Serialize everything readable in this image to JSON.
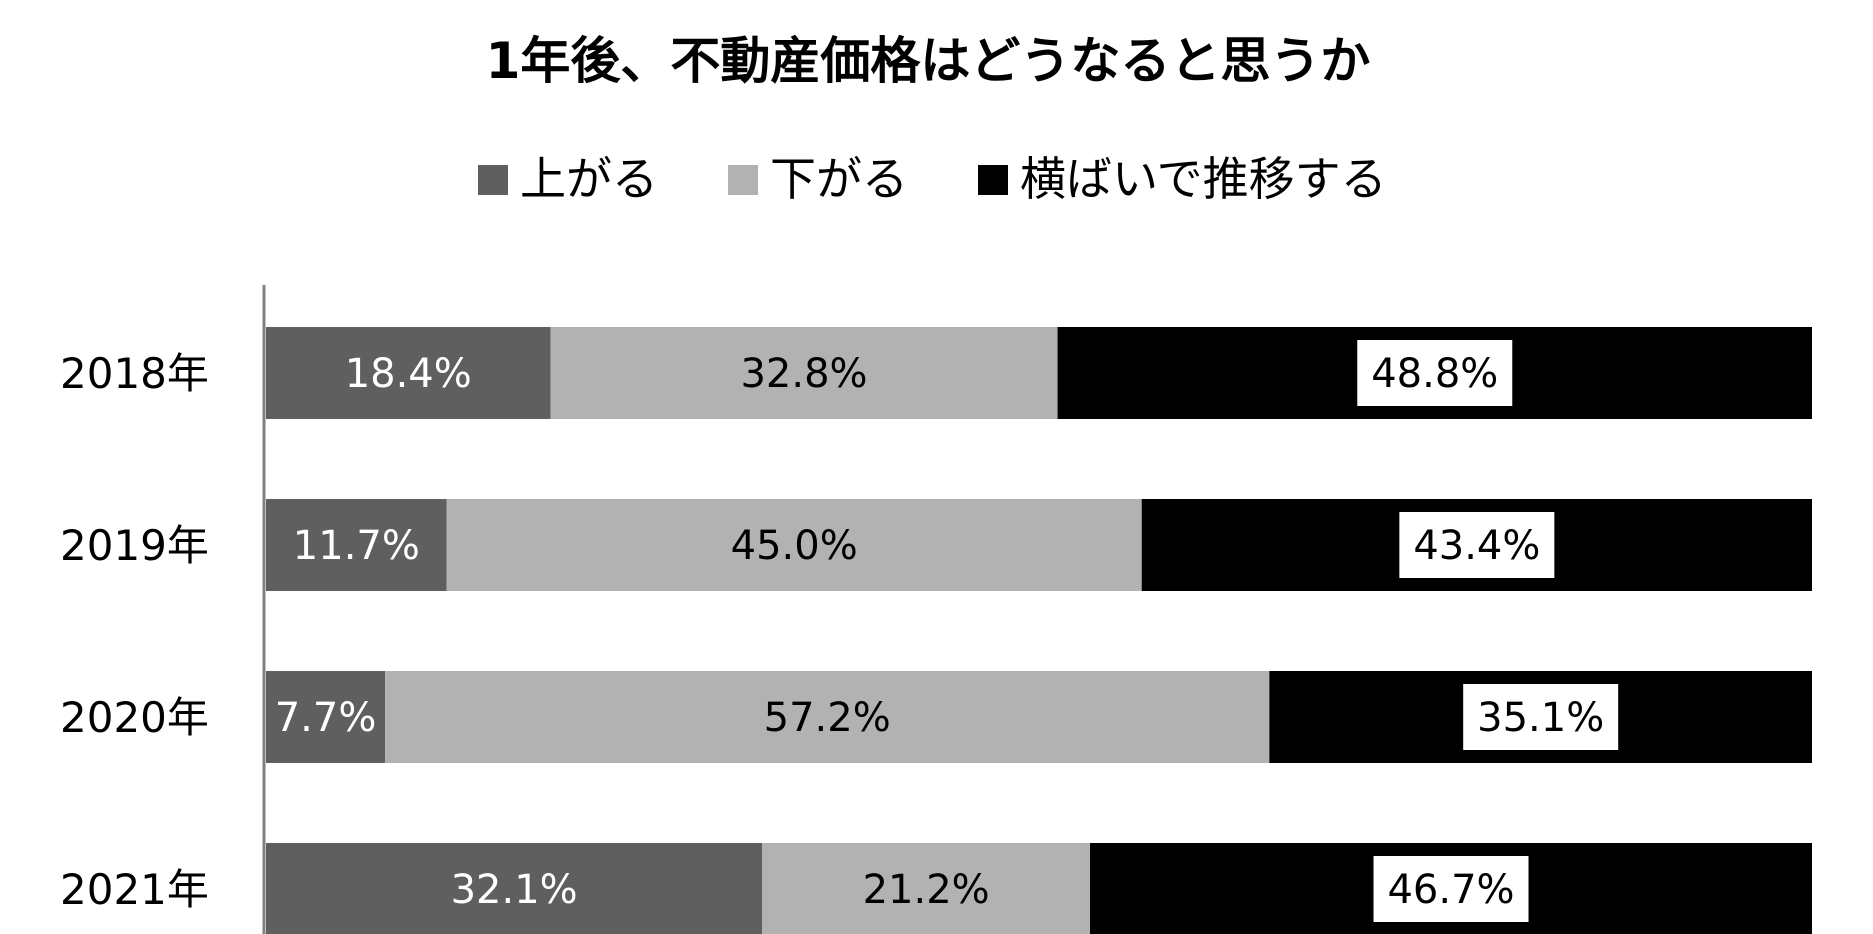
{
  "chart_data": {
    "type": "bar",
    "orientation": "horizontal",
    "stacked": true,
    "percent_stacked": true,
    "title": "1年後、不動産価格はどうなると思うか",
    "legend_position": "top",
    "categories": [
      "2018年",
      "2019年",
      "2020年",
      "2021年"
    ],
    "series": [
      {
        "name": "上がる",
        "color": "#5f5f5f",
        "label_color": "#ffffff",
        "values": [
          18.4,
          11.7,
          7.7,
          32.1
        ],
        "labels": [
          "18.4%",
          "11.7%",
          "7.7%",
          "32.1%"
        ]
      },
      {
        "name": "下がる",
        "color": "#b2b2b2",
        "label_color": "#000000",
        "values": [
          32.8,
          45.0,
          57.2,
          21.2
        ],
        "labels": [
          "32.8%",
          "45.0%",
          "57.2%",
          "21.2%"
        ]
      },
      {
        "name": "横ばいで推移する",
        "color": "#000000",
        "label_color": "#000000",
        "label_box": "#ffffff",
        "values": [
          48.8,
          43.4,
          35.1,
          46.7
        ],
        "labels": [
          "48.8%",
          "43.4%",
          "35.1%",
          "46.7%"
        ]
      }
    ],
    "xlim": [
      0,
      100
    ],
    "grid": false
  }
}
